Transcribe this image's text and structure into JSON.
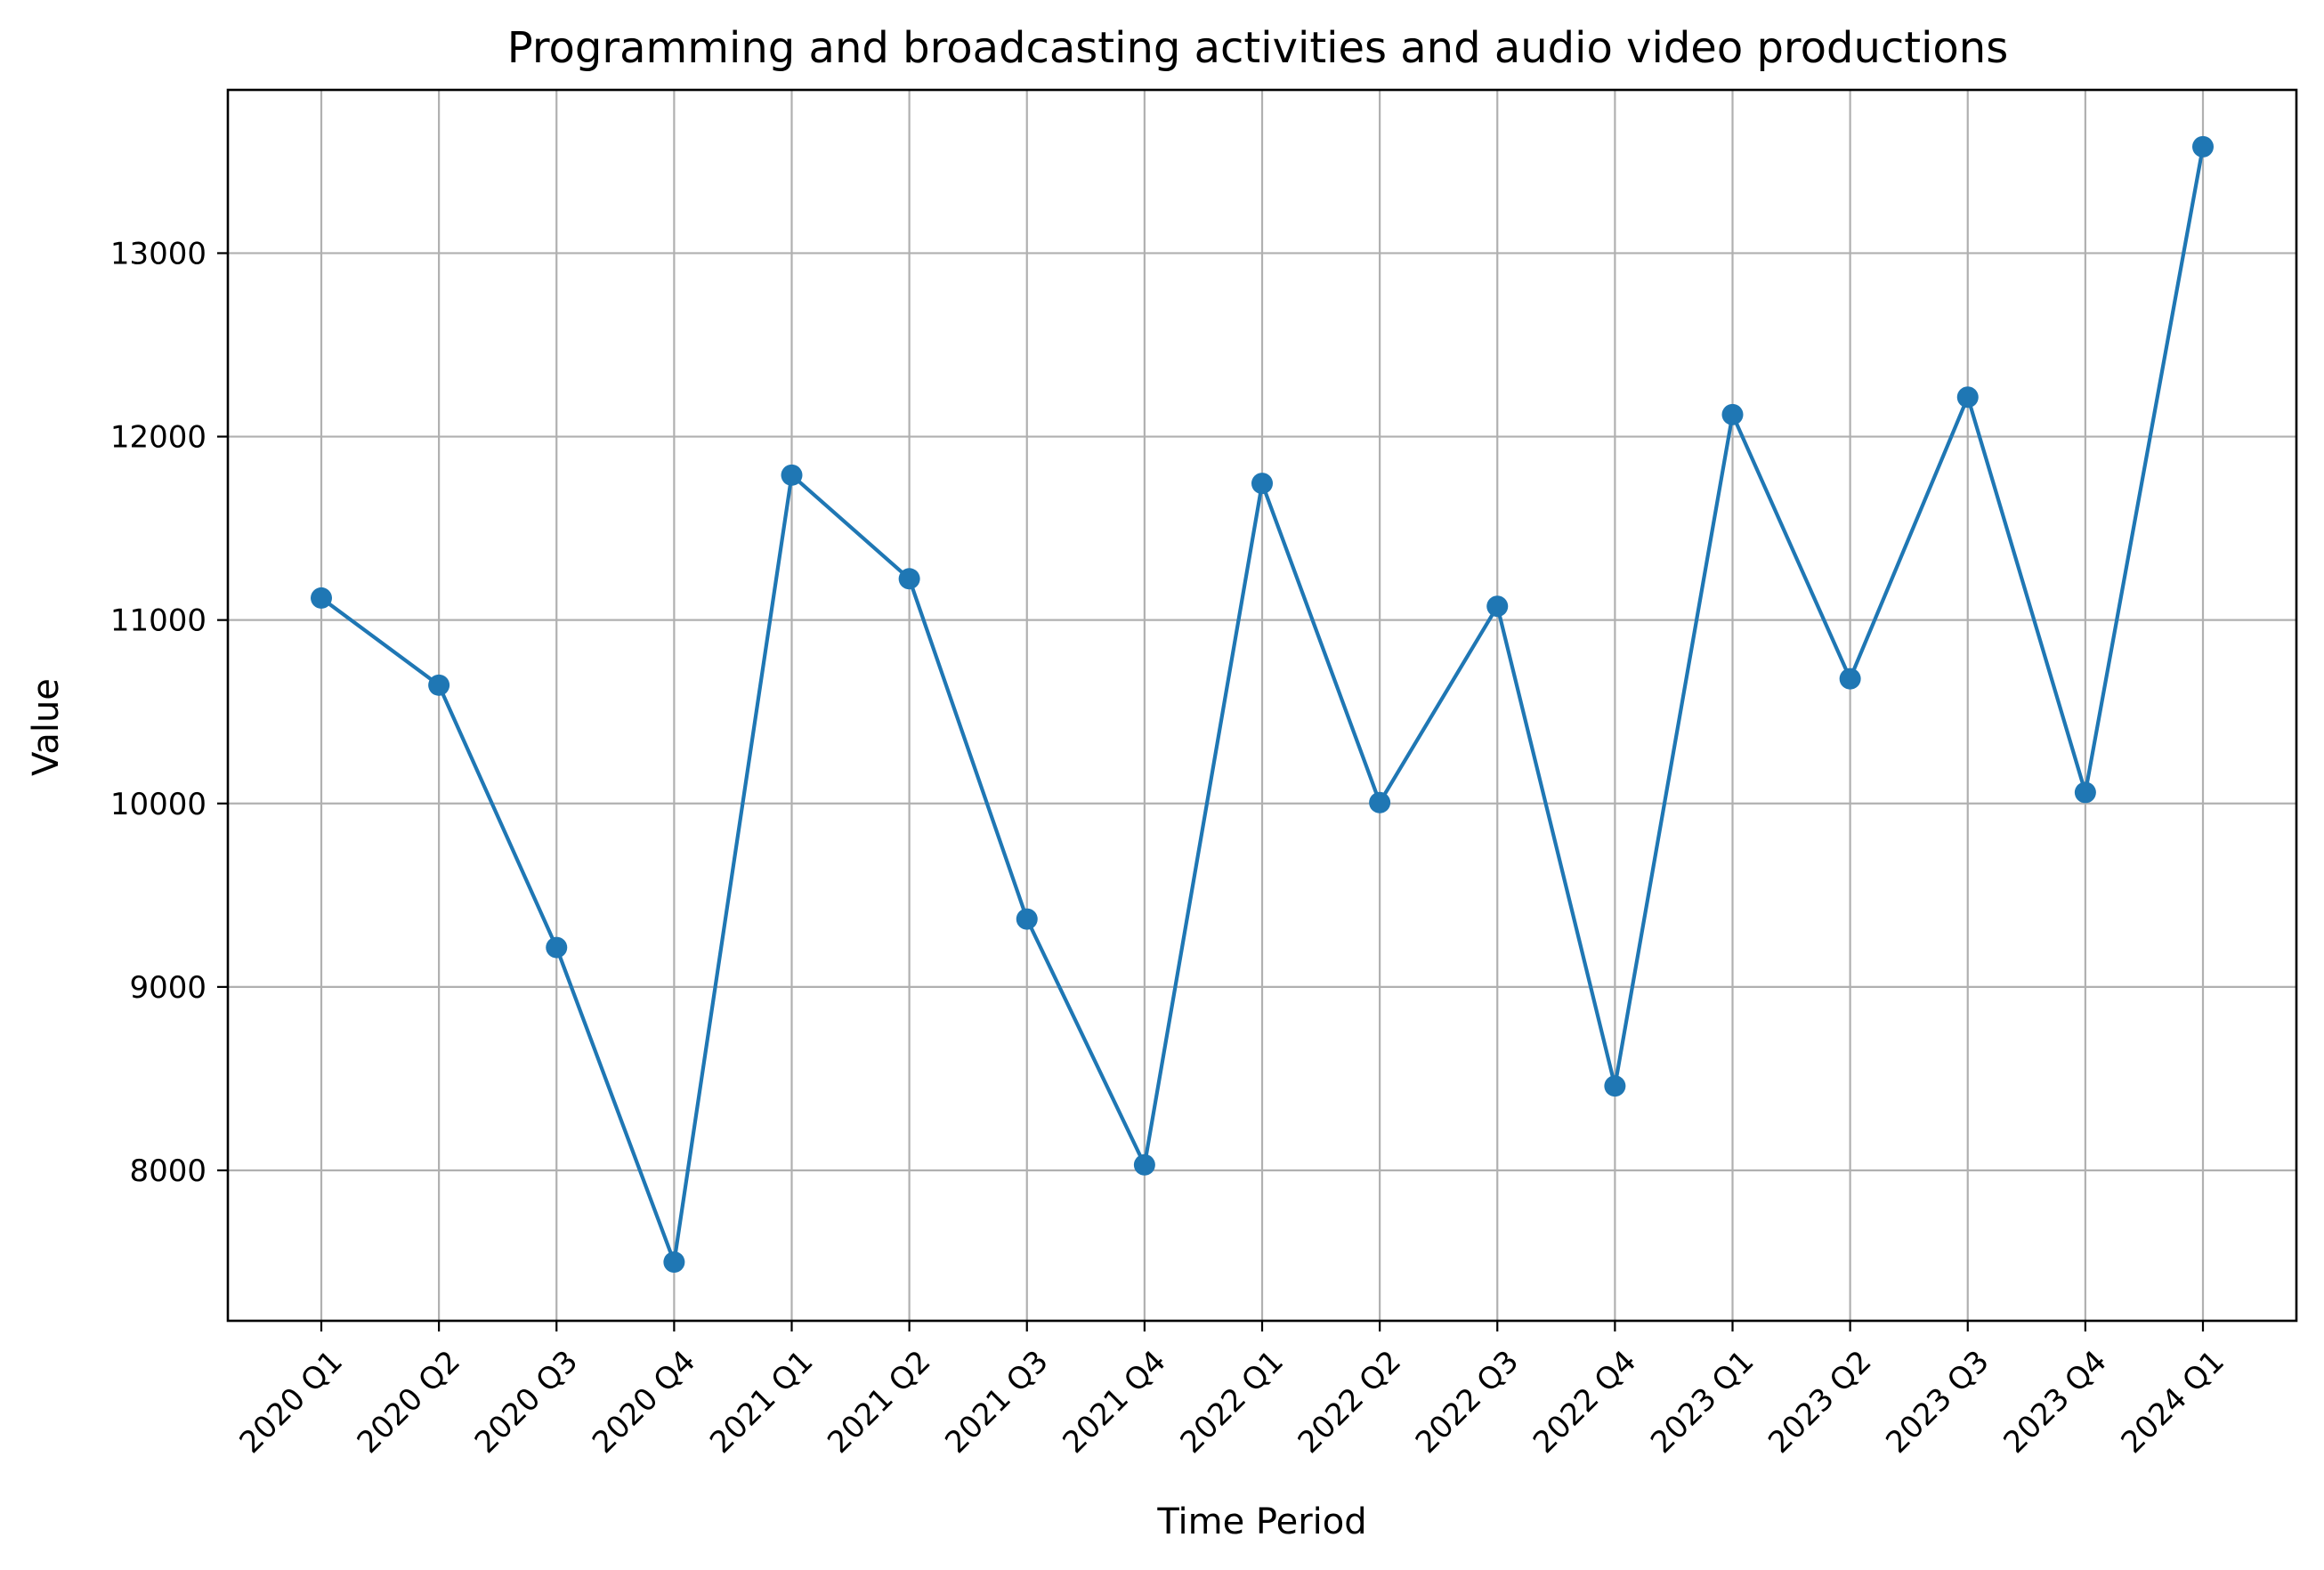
{
  "chart_data": {
    "type": "line",
    "title": "Programming and broadcasting activities and audio video productions",
    "xlabel": "Time Period",
    "ylabel": "Value",
    "categories": [
      "2020 Q1",
      "2020 Q2",
      "2020 Q3",
      "2020 Q4",
      "2021 Q1",
      "2021 Q2",
      "2021 Q3",
      "2021 Q4",
      "2022 Q1",
      "2022 Q2",
      "2022 Q3",
      "2022 Q4",
      "2023 Q1",
      "2023 Q2",
      "2023 Q3",
      "2023 Q4",
      "2024 Q1"
    ],
    "series": [
      {
        "values": [
          11120,
          10645,
          9215,
          7500,
          11790,
          11225,
          9370,
          8030,
          11745,
          10005,
          11075,
          8460,
          12120,
          10680,
          12215,
          10060,
          13580
        ]
      }
    ],
    "ylim": [
      7180,
      13890
    ],
    "yticks": [
      8000,
      9000,
      10000,
      11000,
      12000,
      13000
    ],
    "grid": true,
    "markers": true,
    "line_color": "#1f77b4"
  }
}
